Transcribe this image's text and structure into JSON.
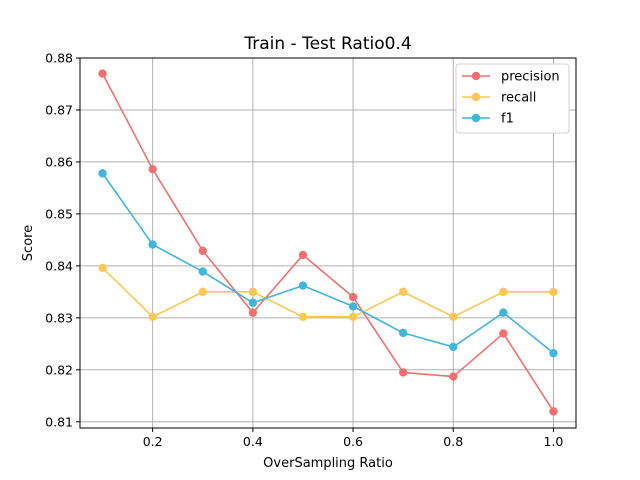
{
  "chart_data": {
    "type": "line",
    "title": "Train - Test Ratio0.4",
    "xlabel": "OverSampling Ratio",
    "ylabel": "Score",
    "xlim": [
      0.055,
      1.045
    ],
    "ylim": [
      0.8088,
      0.88
    ],
    "xticks": [
      0.2,
      0.4,
      0.6,
      0.8,
      1.0
    ],
    "xtick_labels": [
      "0.2",
      "0.4",
      "0.6",
      "0.8",
      "1.0"
    ],
    "yticks": [
      0.81,
      0.82,
      0.83,
      0.84,
      0.85,
      0.86,
      0.87,
      0.88
    ],
    "ytick_labels": [
      "0.81",
      "0.82",
      "0.83",
      "0.84",
      "0.85",
      "0.86",
      "0.87",
      "0.88"
    ],
    "grid": true,
    "legend_position": "top-right",
    "x": [
      0.1,
      0.2,
      0.3,
      0.4,
      0.5,
      0.6,
      0.7,
      0.8,
      0.9,
      1.0
    ],
    "series": [
      {
        "name": "precision",
        "color": "#f47070",
        "values": [
          0.877,
          0.8586,
          0.8429,
          0.831,
          0.8421,
          0.834,
          0.8195,
          0.8187,
          0.827,
          0.812
        ]
      },
      {
        "name": "recall",
        "color": "#fec754",
        "values": [
          0.8396,
          0.8302,
          0.835,
          0.835,
          0.8302,
          0.8302,
          0.835,
          0.8302,
          0.835,
          0.835
        ]
      },
      {
        "name": "f1",
        "color": "#40b6dc",
        "values": [
          0.8578,
          0.8441,
          0.8389,
          0.8329,
          0.8362,
          0.8322,
          0.8271,
          0.8244,
          0.831,
          0.8232
        ]
      }
    ]
  }
}
